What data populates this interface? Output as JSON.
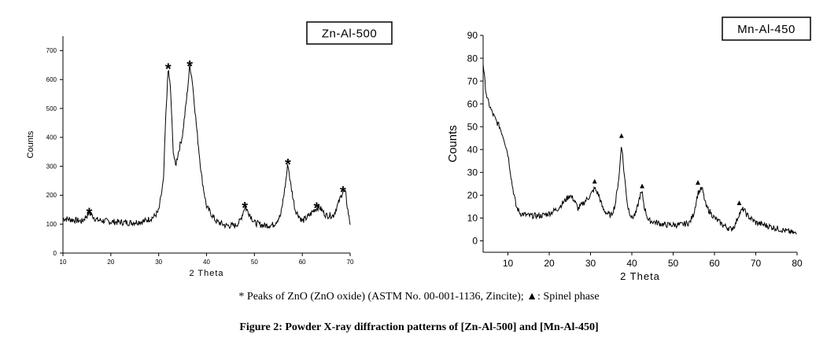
{
  "chart_data": [
    {
      "type": "line",
      "title": "Zn-Al-500",
      "xlabel": "2 Theta",
      "ylabel": "Counts",
      "xlim": [
        10,
        70
      ],
      "ylim": [
        0,
        750
      ],
      "xticks": [
        "10",
        "20",
        "30",
        "40",
        "50",
        "60",
        "70"
      ],
      "yticks": [
        "0",
        "100",
        "200",
        "300",
        "400",
        "500",
        "600",
        "700"
      ],
      "series": [
        {
          "x": [
            10,
            12,
            14,
            15.5,
            17,
            20,
            24,
            27,
            29,
            30,
            31,
            31.5,
            32,
            32.5,
            33,
            33.5,
            34,
            35,
            36,
            36.5,
            37,
            38,
            39,
            40,
            42,
            44,
            46,
            47,
            48,
            49,
            50,
            52,
            54,
            55.5,
            56.5,
            57,
            57.5,
            58.5,
            60,
            61.5,
            62.5,
            63.5,
            65,
            66.5,
            67.5,
            68.5,
            69,
            69.5,
            70
          ],
          "values": [
            120,
            115,
            110,
            140,
            115,
            108,
            105,
            110,
            125,
            145,
            250,
            480,
            640,
            560,
            360,
            300,
            340,
            410,
            560,
            650,
            600,
            420,
            260,
            160,
            110,
            95,
            95,
            110,
            160,
            135,
            105,
            95,
            98,
            130,
            240,
            310,
            245,
            150,
            110,
            130,
            150,
            160,
            130,
            130,
            170,
            215,
            210,
            150,
            100
          ]
        }
      ],
      "markers": [
        {
          "symbol": "*",
          "x": 15.5
        },
        {
          "symbol": "*",
          "x": 32
        },
        {
          "symbol": "*",
          "x": 36.5
        },
        {
          "symbol": "*",
          "x": 48
        },
        {
          "symbol": "*",
          "x": 57
        },
        {
          "symbol": "*",
          "x": 63
        },
        {
          "symbol": "*",
          "x": 68.5
        }
      ],
      "grid": false
    },
    {
      "type": "line",
      "title": "Mn-Al-450",
      "xlabel": "2 Theta",
      "ylabel": "Counts",
      "xlim": [
        4,
        80
      ],
      "ylim": [
        -5,
        90
      ],
      "xticks": [
        "10",
        "20",
        "30",
        "40",
        "50",
        "60",
        "70",
        "80"
      ],
      "yticks": [
        "0",
        "10",
        "20",
        "30",
        "40",
        "50",
        "60",
        "70",
        "80",
        "90"
      ],
      "series": [
        {
          "x": [
            4,
            4.5,
            5,
            6,
            7,
            8,
            9,
            10,
            11,
            12,
            13,
            15,
            18,
            20,
            22,
            24,
            25,
            26,
            27,
            28,
            29,
            30,
            31,
            32,
            33,
            34,
            35,
            36,
            37,
            37.5,
            38,
            39,
            40,
            41,
            42,
            42.5,
            43,
            44,
            46,
            48,
            50,
            52,
            54,
            55,
            56,
            57,
            58,
            60,
            62,
            64,
            65,
            66,
            67,
            68,
            70,
            72,
            74,
            76,
            78,
            80
          ],
          "values": [
            78,
            68,
            62,
            57,
            53,
            50,
            45,
            38,
            25,
            15,
            12,
            11,
            11,
            12,
            14,
            18,
            20,
            18,
            14,
            16,
            18,
            20,
            23,
            20,
            14,
            12,
            11,
            16,
            30,
            43,
            32,
            15,
            10,
            12,
            20,
            21,
            15,
            9,
            8,
            7,
            7,
            7,
            8,
            12,
            21,
            23,
            15,
            10,
            7,
            5,
            7,
            12,
            14,
            11,
            8,
            7,
            6,
            5,
            4,
            3
          ]
        }
      ],
      "markers": [
        {
          "symbol": "▲",
          "x": 31
        },
        {
          "symbol": "▲",
          "x": 37.5
        },
        {
          "symbol": "▲",
          "x": 42.5
        },
        {
          "symbol": "▲",
          "x": 56
        },
        {
          "symbol": "▲",
          "x": 66
        }
      ],
      "grid": false
    }
  ],
  "legend_note": "* Peaks of ZnO (ZnO oxide) (ASTM No. 00-001-1136, Zincite); ▲: Spinel phase",
  "figure_caption": "Figure 2: Powder X-ray diffraction patterns of [Zn-Al-500] and [Mn-Al-450]"
}
